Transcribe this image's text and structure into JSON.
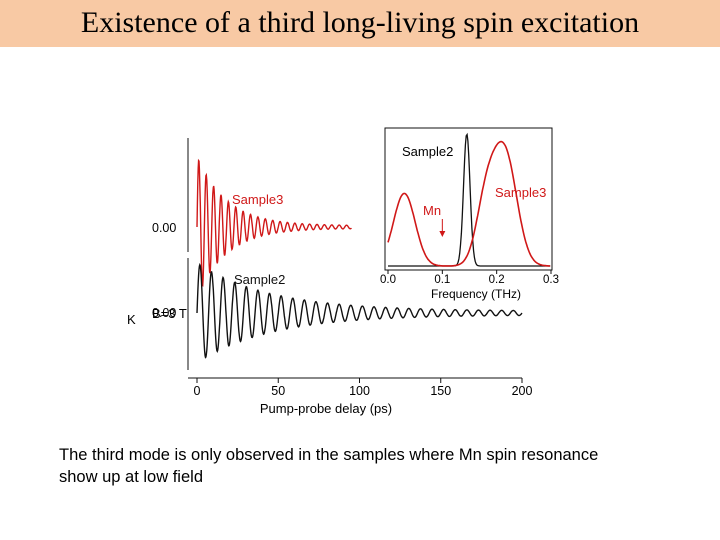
{
  "title": "Existence of a third long-living spin excitation",
  "caption": "The third mode is only observed in the samples where Mn spin resonance show up at low field",
  "colors": {
    "title_bg": "#f8c9a4",
    "red": "#d01818",
    "black": "#111111"
  },
  "chart_data": [
    {
      "type": "line",
      "title": "",
      "xlabel": "Pump-probe delay (ps)",
      "ylabel": "K",
      "xlim": [
        0,
        200
      ],
      "x_ticks": [
        "0",
        "50",
        "100",
        "150",
        "200"
      ],
      "annotation": "B=3 T",
      "series": [
        {
          "name": "Sample3",
          "color": "#d01818",
          "zero_label": "0.00",
          "freq": 0.22,
          "decay": 18,
          "residual": 0.02
        },
        {
          "name": "Sample2",
          "color": "#111111",
          "zero_label": "0.00",
          "freq": 0.14,
          "decay": 45,
          "residual": 0.04
        }
      ]
    },
    {
      "type": "line",
      "title": "",
      "xlabel": "Frequency (THz)",
      "xlim": [
        0.0,
        0.3
      ],
      "x_ticks": [
        "0.0",
        "0.1",
        "0.2",
        "0.3"
      ],
      "annotation": "Mn",
      "annotation_x": 0.1,
      "series": [
        {
          "name": "Sample2",
          "color": "#111111",
          "peaks": [
            {
              "x": 0.145,
              "height": 1.0,
              "width": 0.006
            }
          ]
        },
        {
          "name": "Sample3",
          "color": "#d01818",
          "peaks": [
            {
              "x": 0.215,
              "height": 0.85,
              "width": 0.022
            },
            {
              "x": 0.18,
              "height": 0.45,
              "width": 0.018
            },
            {
              "x": 0.03,
              "height": 0.55,
              "width": 0.02
            }
          ]
        }
      ]
    }
  ]
}
